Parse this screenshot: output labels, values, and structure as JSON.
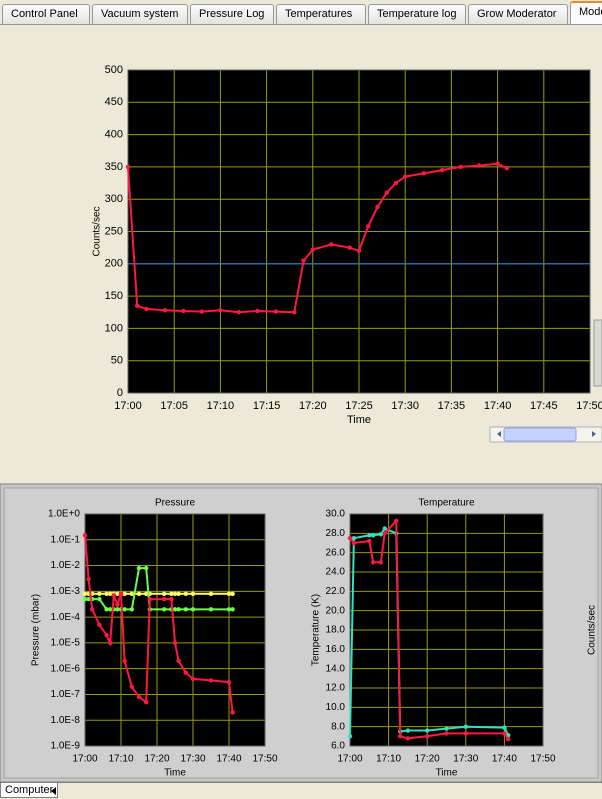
{
  "tabs": [
    "Control Panel",
    "Vacuum system",
    "Pressure Log",
    "Temperatures",
    "Temperature log",
    "Grow Moderator",
    "Mode"
  ],
  "side_label": "Counts/sec",
  "status_tab": "Computer",
  "chart_data": [
    {
      "type": "line",
      "x_label": "Time",
      "y_label": "Counts/sec",
      "x": [
        "17:00",
        "17:01",
        "17:02",
        "17:04",
        "17:06",
        "17:08",
        "17:10",
        "17:12",
        "17:14",
        "17:16",
        "17:18",
        "17:19",
        "17:20",
        "17:22",
        "17:24",
        "17:25",
        "17:26",
        "17:27",
        "17:28",
        "17:29",
        "17:30",
        "17:32",
        "17:34",
        "17:36",
        "17:38",
        "17:40",
        "17:41"
      ],
      "series": [
        {
          "color": "#ff1744",
          "values": [
            350,
            135,
            130,
            128,
            127,
            126,
            128,
            125,
            127,
            126,
            125,
            205,
            222,
            230,
            225,
            220,
            258,
            288,
            310,
            325,
            335,
            340,
            345,
            350,
            352,
            355,
            348
          ]
        }
      ],
      "reference_line": {
        "value": 200,
        "color": "#2b6fd6"
      },
      "xlim": [
        "17:00",
        "17:50"
      ],
      "xticks": [
        "17:00",
        "17:05",
        "17:10",
        "17:15",
        "17:20",
        "17:25",
        "17:30",
        "17:35",
        "17:40",
        "17:45",
        "17:50"
      ],
      "ylim": [
        0,
        500
      ],
      "yticks": [
        0,
        50,
        100,
        150,
        200,
        250,
        300,
        350,
        400,
        450,
        500
      ],
      "grid": true,
      "grid_color": "#9a9a10",
      "background": "#000000"
    },
    {
      "type": "line",
      "title": "Pressure",
      "x_label": "Time",
      "y_label": "Pressure (mbar)",
      "log": true,
      "x": [
        "17:00",
        "17:01",
        "17:02",
        "17:04",
        "17:06",
        "17:07",
        "17:08",
        "17:09",
        "17:10",
        "17:11",
        "17:13",
        "17:15",
        "17:17",
        "17:18",
        "17:22",
        "17:24",
        "17:25",
        "17:26",
        "17:28",
        "17:30",
        "17:35",
        "17:40",
        "17:41"
      ],
      "series": [
        {
          "color": "#ffff66",
          "values": [
            0.0008,
            0.0008,
            0.0008,
            0.0008,
            0.0008,
            0.0008,
            0.0008,
            0.0008,
            0.0008,
            0.0008,
            0.0008,
            0.0008,
            0.0008,
            0.0008,
            0.0008,
            0.0008,
            0.0008,
            0.0008,
            0.0008,
            0.0008,
            0.0008,
            0.0008,
            0.0008
          ]
        },
        {
          "color": "#66ff44",
          "values": [
            0.0005,
            0.0005,
            0.0005,
            0.0005,
            0.0002,
            0.0002,
            0.0002,
            0.0002,
            0.0002,
            0.0002,
            0.0002,
            0.008,
            0.008,
            0.0002,
            0.0002,
            0.0002,
            0.0002,
            0.0002,
            0.0002,
            0.0002,
            0.0002,
            0.0002,
            0.0002
          ]
        },
        {
          "color": "#ff1744",
          "values": [
            0.15,
            0.003,
            0.0002,
            5e-05,
            2e-05,
            1e-05,
            0.0007,
            0.0003,
            0.0008,
            2e-06,
            2e-07,
            8e-08,
            5e-08,
            0.0005,
            0.0005,
            0.0005,
            1e-05,
            2e-06,
            7e-07,
            4e-07,
            3.5e-07,
            3e-07,
            2e-08
          ]
        }
      ],
      "xlim": [
        "17:00",
        "17:50"
      ],
      "xticks": [
        "17:00",
        "17:10",
        "17:20",
        "17:30",
        "17:40",
        "17:50"
      ],
      "ylim": [
        1e-09,
        1
      ],
      "yticks": [
        {
          "value": 1e-09,
          "label": "1.0E-9"
        },
        {
          "value": 1e-08,
          "label": "1.0E-8"
        },
        {
          "value": 1e-07,
          "label": "1.0E-7"
        },
        {
          "value": 1e-06,
          "label": "1.0E-6"
        },
        {
          "value": 1e-05,
          "label": "1.0E-5"
        },
        {
          "value": 0.0001,
          "label": "1.0E-4"
        },
        {
          "value": 0.001,
          "label": "1.0E-3"
        },
        {
          "value": 0.01,
          "label": "1.0E-2"
        },
        {
          "value": 0.1,
          "label": "1.0E-1"
        },
        {
          "value": 1,
          "label": "1.0E+0"
        }
      ],
      "grid": true,
      "grid_color": "#9a9a10",
      "background": "#000000"
    },
    {
      "type": "line",
      "title": "Temperature",
      "x_label": "Time",
      "y_label": "Temperature (K)",
      "x": [
        "17:00",
        "17:01",
        "17:05",
        "17:06",
        "17:08",
        "17:09",
        "17:12",
        "17:13",
        "17:15",
        "17:20",
        "17:25",
        "17:30",
        "17:40",
        "17:41"
      ],
      "series": [
        {
          "color": "#33e0c0",
          "values": [
            7,
            27.5,
            27.8,
            27.8,
            27.9,
            28.5,
            28,
            7.5,
            7.6,
            7.6,
            7.8,
            8,
            7.9,
            7.1
          ]
        },
        {
          "color": "#ff1744",
          "values": [
            27.5,
            27,
            27.2,
            25,
            25,
            28,
            29.3,
            7,
            6.8,
            7,
            7.3,
            7.3,
            7.3,
            6.7
          ]
        }
      ],
      "xlim": [
        "17:00",
        "17:50"
      ],
      "xticks": [
        "17:00",
        "17:10",
        "17:20",
        "17:30",
        "17:40",
        "17:50"
      ],
      "ylim": [
        6,
        30
      ],
      "yticks": [
        {
          "value": 6,
          "label": "6.0"
        },
        {
          "value": 8,
          "label": "8.0"
        },
        {
          "value": 10,
          "label": "10.0"
        },
        {
          "value": 12,
          "label": "12.0"
        },
        {
          "value": 14,
          "label": "14.0"
        },
        {
          "value": 16,
          "label": "16.0"
        },
        {
          "value": 18,
          "label": "18.0"
        },
        {
          "value": 20,
          "label": "20.0"
        },
        {
          "value": 22,
          "label": "22.0"
        },
        {
          "value": 24,
          "label": "24.0"
        },
        {
          "value": 26,
          "label": "26.0"
        },
        {
          "value": 28,
          "label": "28.0"
        },
        {
          "value": 30,
          "label": "30.0"
        }
      ],
      "grid": true,
      "grid_color": "#9a9a10",
      "background": "#000000"
    }
  ]
}
